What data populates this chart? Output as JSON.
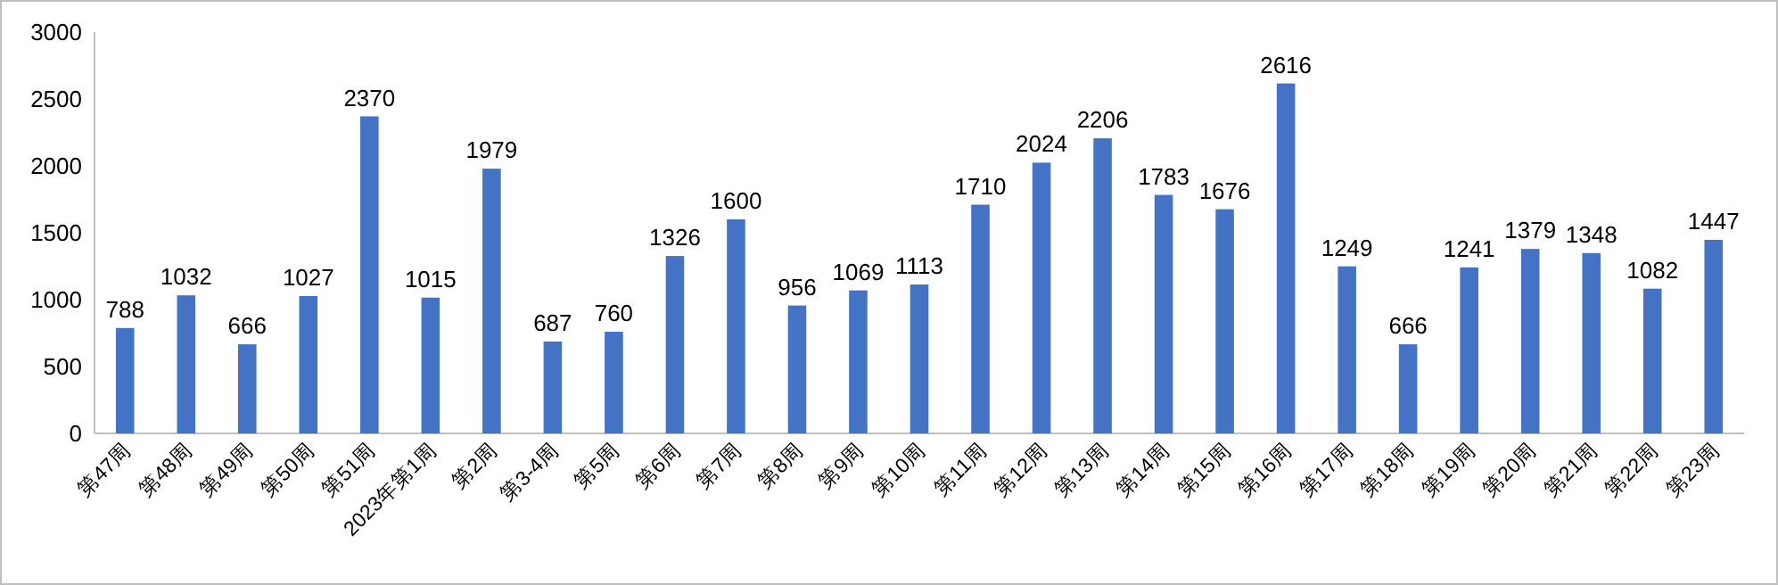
{
  "chart_data": {
    "type": "bar",
    "categories": [
      "第47周",
      "第48周",
      "第49周",
      "第50周",
      "第51周",
      "2023年第1周",
      "第2周",
      "第3-4周",
      "第5周",
      "第6周",
      "第7周",
      "第8周",
      "第9周",
      "第10周",
      "第11周",
      "第12周",
      "第13周",
      "第14周",
      "第15周",
      "第16周",
      "第17周",
      "第18周",
      "第19周",
      "第20周",
      "第21周",
      "第22周",
      "第23周"
    ],
    "values": [
      788,
      1032,
      666,
      1027,
      2370,
      1015,
      1979,
      687,
      760,
      1326,
      1600,
      956,
      1069,
      1113,
      1710,
      2024,
      2206,
      1783,
      1676,
      2616,
      1249,
      666,
      1241,
      1379,
      1348,
      1082,
      1447
    ],
    "color": "#4472c4",
    "ylim": [
      0,
      3000
    ],
    "yticks": [
      0,
      500,
      1000,
      1500,
      2000,
      2500,
      3000
    ],
    "data_labels": true
  }
}
